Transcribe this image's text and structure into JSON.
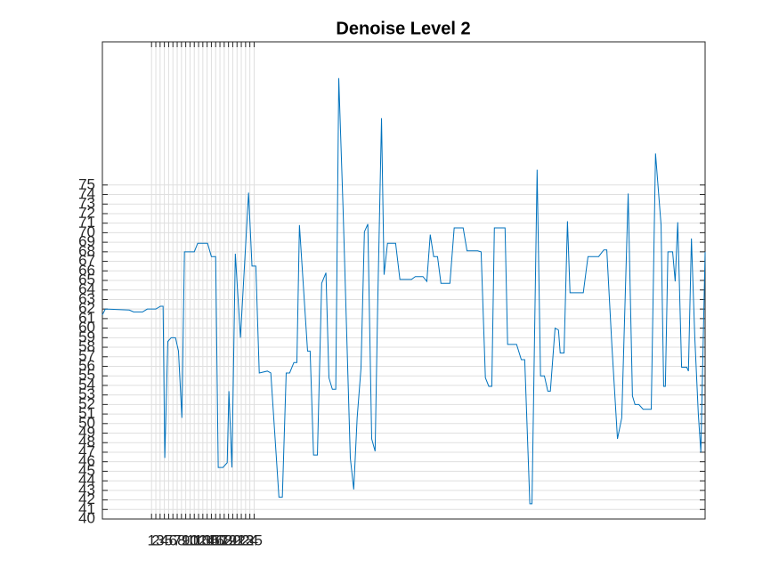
{
  "chart_data": {
    "type": "line",
    "title": "Denoise Level 2",
    "color": "#0072bd",
    "grid": true,
    "xlim": [
      -10.5,
      130.5
    ],
    "ylim": [
      40,
      90
    ],
    "xticks": [
      1,
      2,
      3,
      4,
      5,
      6,
      7,
      8,
      9,
      10,
      11,
      12,
      13,
      14,
      15,
      16,
      17,
      18,
      19,
      20,
      21,
      22,
      23,
      24,
      25
    ],
    "yticks": [
      40,
      41,
      42,
      43,
      44,
      45,
      46,
      47,
      48,
      49,
      50,
      51,
      52,
      53,
      54,
      55,
      56,
      57,
      58,
      59,
      60,
      61,
      62,
      63,
      64,
      65,
      66,
      67,
      68,
      69,
      70,
      71,
      72,
      73,
      74,
      75
    ],
    "x": [
      -10.5,
      -9.8,
      -4.2,
      -3.2,
      -1.1,
      0.0,
      2.0,
      3.1,
      3.7,
      4.1,
      4.8,
      5.6,
      6.6,
      7.3,
      8.1,
      8.7,
      11.0,
      11.8,
      14.1,
      15.0,
      16.0,
      16.6,
      17.7,
      18.7,
      19.1,
      19.8,
      20.6,
      21.8,
      23.7,
      24.5,
      25.4,
      26.2,
      28.1,
      28.9,
      30.8,
      31.6,
      32.5,
      33.3,
      34.3,
      35.0,
      35.6,
      37.5,
      38.1,
      38.9,
      39.8,
      40.8,
      41.8,
      42.5,
      43.3,
      44.1,
      44.8,
      45.8,
      47.5,
      48.3,
      49.1,
      50.0,
      50.8,
      51.6,
      52.5,
      53.3,
      53.9,
      54.8,
      55.4,
      56.2,
      58.1,
      59.1,
      61.8,
      62.7,
      64.5,
      65.4,
      66.2,
      67.0,
      67.9,
      68.7,
      70.8,
      71.8,
      73.9,
      74.8,
      77.3,
      78.1,
      79.1,
      79.9,
      80.6,
      81.2,
      83.7,
      84.3,
      86.4,
      87.5,
      88.3,
      89.5,
      90.0,
      91.2,
      92.0,
      92.9,
      93.7,
      94.3,
      95.4,
      96.2,
      96.6,
      97.5,
      98.3,
      98.9,
      102.0,
      103.1,
      105.6,
      106.8,
      107.5,
      108.7,
      110.0,
      111.0,
      112.5,
      113.5,
      114.1,
      115.0,
      116.0,
      117.9,
      118.9,
      120.2,
      120.8,
      121.2,
      121.8,
      122.9,
      123.5,
      124.1,
      125.0,
      126.2,
      126.6,
      127.3,
      128.1,
      128.9,
      129.5,
      130.5
    ],
    "values": [
      61.4,
      62.0,
      61.9,
      61.7,
      61.7,
      62.0,
      62.0,
      62.3,
      62.3,
      46.4,
      58.6,
      59.0,
      59.0,
      57.6,
      50.6,
      68.0,
      68.0,
      68.9,
      68.9,
      67.5,
      67.5,
      45.4,
      45.4,
      45.9,
      53.4,
      45.4,
      67.8,
      59.0,
      74.2,
      66.5,
      66.5,
      55.3,
      55.5,
      55.3,
      42.3,
      42.3,
      55.3,
      55.3,
      56.4,
      56.4,
      70.8,
      57.6,
      57.6,
      46.7,
      46.7,
      64.7,
      65.8,
      54.8,
      53.6,
      53.6,
      86.2,
      72.6,
      46.4,
      43.1,
      50.6,
      55.8,
      70.1,
      70.9,
      48.4,
      47.1,
      62.3,
      82.0,
      65.6,
      68.9,
      68.9,
      65.1,
      65.1,
      65.4,
      65.4,
      64.9,
      69.8,
      67.5,
      67.5,
      64.7,
      64.7,
      70.5,
      70.5,
      68.1,
      68.1,
      68.0,
      54.8,
      53.9,
      53.9,
      70.5,
      70.5,
      58.3,
      58.3,
      56.7,
      56.7,
      41.6,
      41.6,
      76.6,
      55.0,
      55.0,
      53.4,
      53.4,
      60.0,
      59.8,
      57.4,
      57.4,
      71.2,
      63.7,
      63.7,
      67.5,
      67.5,
      68.2,
      68.2,
      58.1,
      48.4,
      50.6,
      74.1,
      52.9,
      52.0,
      52.0,
      51.5,
      51.5,
      78.3,
      70.8,
      53.9,
      53.9,
      68.0,
      68.0,
      64.9,
      71.1,
      55.9,
      55.9,
      55.5,
      69.4,
      58.9,
      51.1,
      47.0,
      68.0
    ]
  }
}
